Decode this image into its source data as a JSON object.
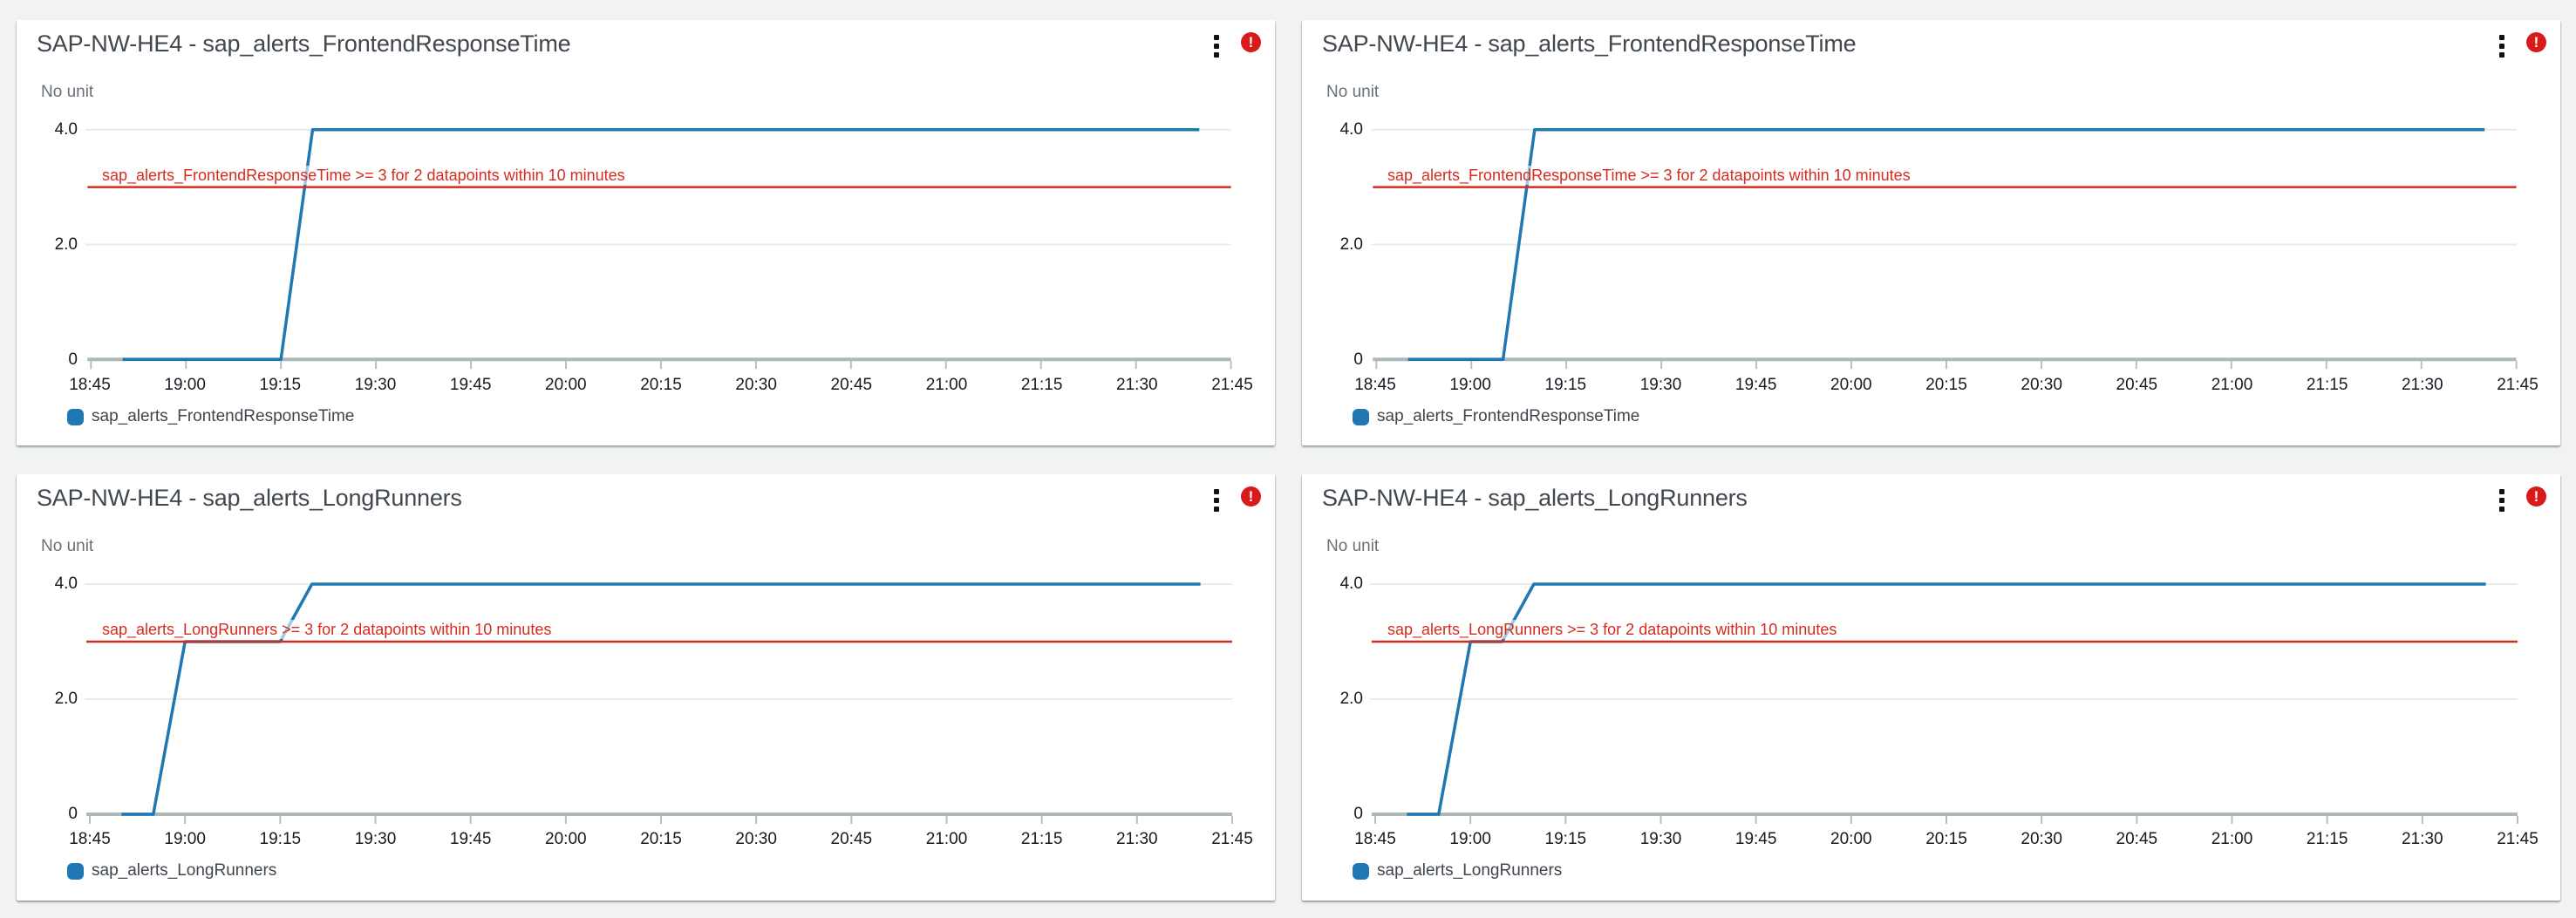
{
  "page": {
    "background": "#f1f2f2"
  },
  "colors": {
    "series_blue": "#1f77b4",
    "threshold_red": "#d62b1e",
    "alarm_red": "#d91a1a",
    "card_background": "#ffffff"
  },
  "icons": {
    "widget_menu": "vertical-kebab-menu-icon",
    "alarm_state": "alarm-exclamation-circle-icon",
    "alarm_glyph": "!"
  },
  "axis": {
    "x_ticks": [
      "18:45",
      "19:00",
      "19:15",
      "19:30",
      "19:45",
      "20:00",
      "20:15",
      "20:30",
      "20:45",
      "21:00",
      "21:15",
      "21:30",
      "21:45"
    ],
    "y_ticks": [
      {
        "label": "4.0",
        "value": 4
      },
      {
        "label": "2.0",
        "value": 2
      },
      {
        "label": "0",
        "value": 0
      }
    ],
    "x_start": "18:45",
    "x_end": "21:45",
    "ylim": [
      0,
      4
    ],
    "grid": "horizontal-only",
    "legend_position": "bottom-left"
  },
  "chart_data": [
    {
      "type": "line",
      "title": "SAP-NW-HE4 - sap_alerts_FrontendResponseTime",
      "ylabel": "No unit",
      "ylim": [
        0,
        4
      ],
      "x_range": [
        "18:45",
        "21:45"
      ],
      "alarm_state": "ALARM",
      "series": [
        {
          "name": "sap_alerts_FrontendResponseTime",
          "color": "#1f77b4",
          "points": [
            [
              "18:50",
              0
            ],
            [
              "19:15",
              0
            ],
            [
              "19:20",
              4
            ],
            [
              "21:40",
              4
            ]
          ]
        }
      ],
      "threshold": {
        "label": "sap_alerts_FrontendResponseTime >= 3 for 2 datapoints within 10 minutes",
        "value": 3,
        "color": "#d62b1e"
      }
    },
    {
      "type": "line",
      "title": "SAP-NW-HE4 - sap_alerts_FrontendResponseTime",
      "ylabel": "No unit",
      "ylim": [
        0,
        4
      ],
      "x_range": [
        "18:45",
        "21:45"
      ],
      "alarm_state": "ALARM",
      "series": [
        {
          "name": "sap_alerts_FrontendResponseTime",
          "color": "#1f77b4",
          "points": [
            [
              "18:50",
              0
            ],
            [
              "19:05",
              0
            ],
            [
              "19:10",
              4
            ],
            [
              "21:40",
              4
            ]
          ]
        }
      ],
      "threshold": {
        "label": "sap_alerts_FrontendResponseTime >= 3 for 2 datapoints within 10 minutes",
        "value": 3,
        "color": "#d62b1e"
      }
    },
    {
      "type": "line",
      "title": "SAP-NW-HE4 - sap_alerts_LongRunners",
      "ylabel": "No unit",
      "ylim": [
        0,
        4
      ],
      "x_range": [
        "18:45",
        "21:45"
      ],
      "alarm_state": "ALARM",
      "series": [
        {
          "name": "sap_alerts_LongRunners",
          "color": "#1f77b4",
          "points": [
            [
              "18:50",
              0
            ],
            [
              "18:55",
              0
            ],
            [
              "19:00",
              3
            ],
            [
              "19:15",
              3
            ],
            [
              "19:20",
              4
            ],
            [
              "21:40",
              4
            ]
          ]
        }
      ],
      "threshold": {
        "label": "sap_alerts_LongRunners >= 3 for 2 datapoints within 10 minutes",
        "value": 3,
        "color": "#d62b1e"
      }
    },
    {
      "type": "line",
      "title": "SAP-NW-HE4 - sap_alerts_LongRunners",
      "ylabel": "No unit",
      "ylim": [
        0,
        4
      ],
      "x_range": [
        "18:45",
        "21:45"
      ],
      "alarm_state": "ALARM",
      "series": [
        {
          "name": "sap_alerts_LongRunners",
          "color": "#1f77b4",
          "points": [
            [
              "18:50",
              0
            ],
            [
              "18:55",
              0
            ],
            [
              "19:00",
              3
            ],
            [
              "19:05",
              3
            ],
            [
              "19:10",
              4
            ],
            [
              "21:40",
              4
            ]
          ]
        }
      ],
      "threshold": {
        "label": "sap_alerts_LongRunners >= 3 for 2 datapoints within 10 minutes",
        "value": 3,
        "color": "#d62b1e"
      }
    }
  ]
}
